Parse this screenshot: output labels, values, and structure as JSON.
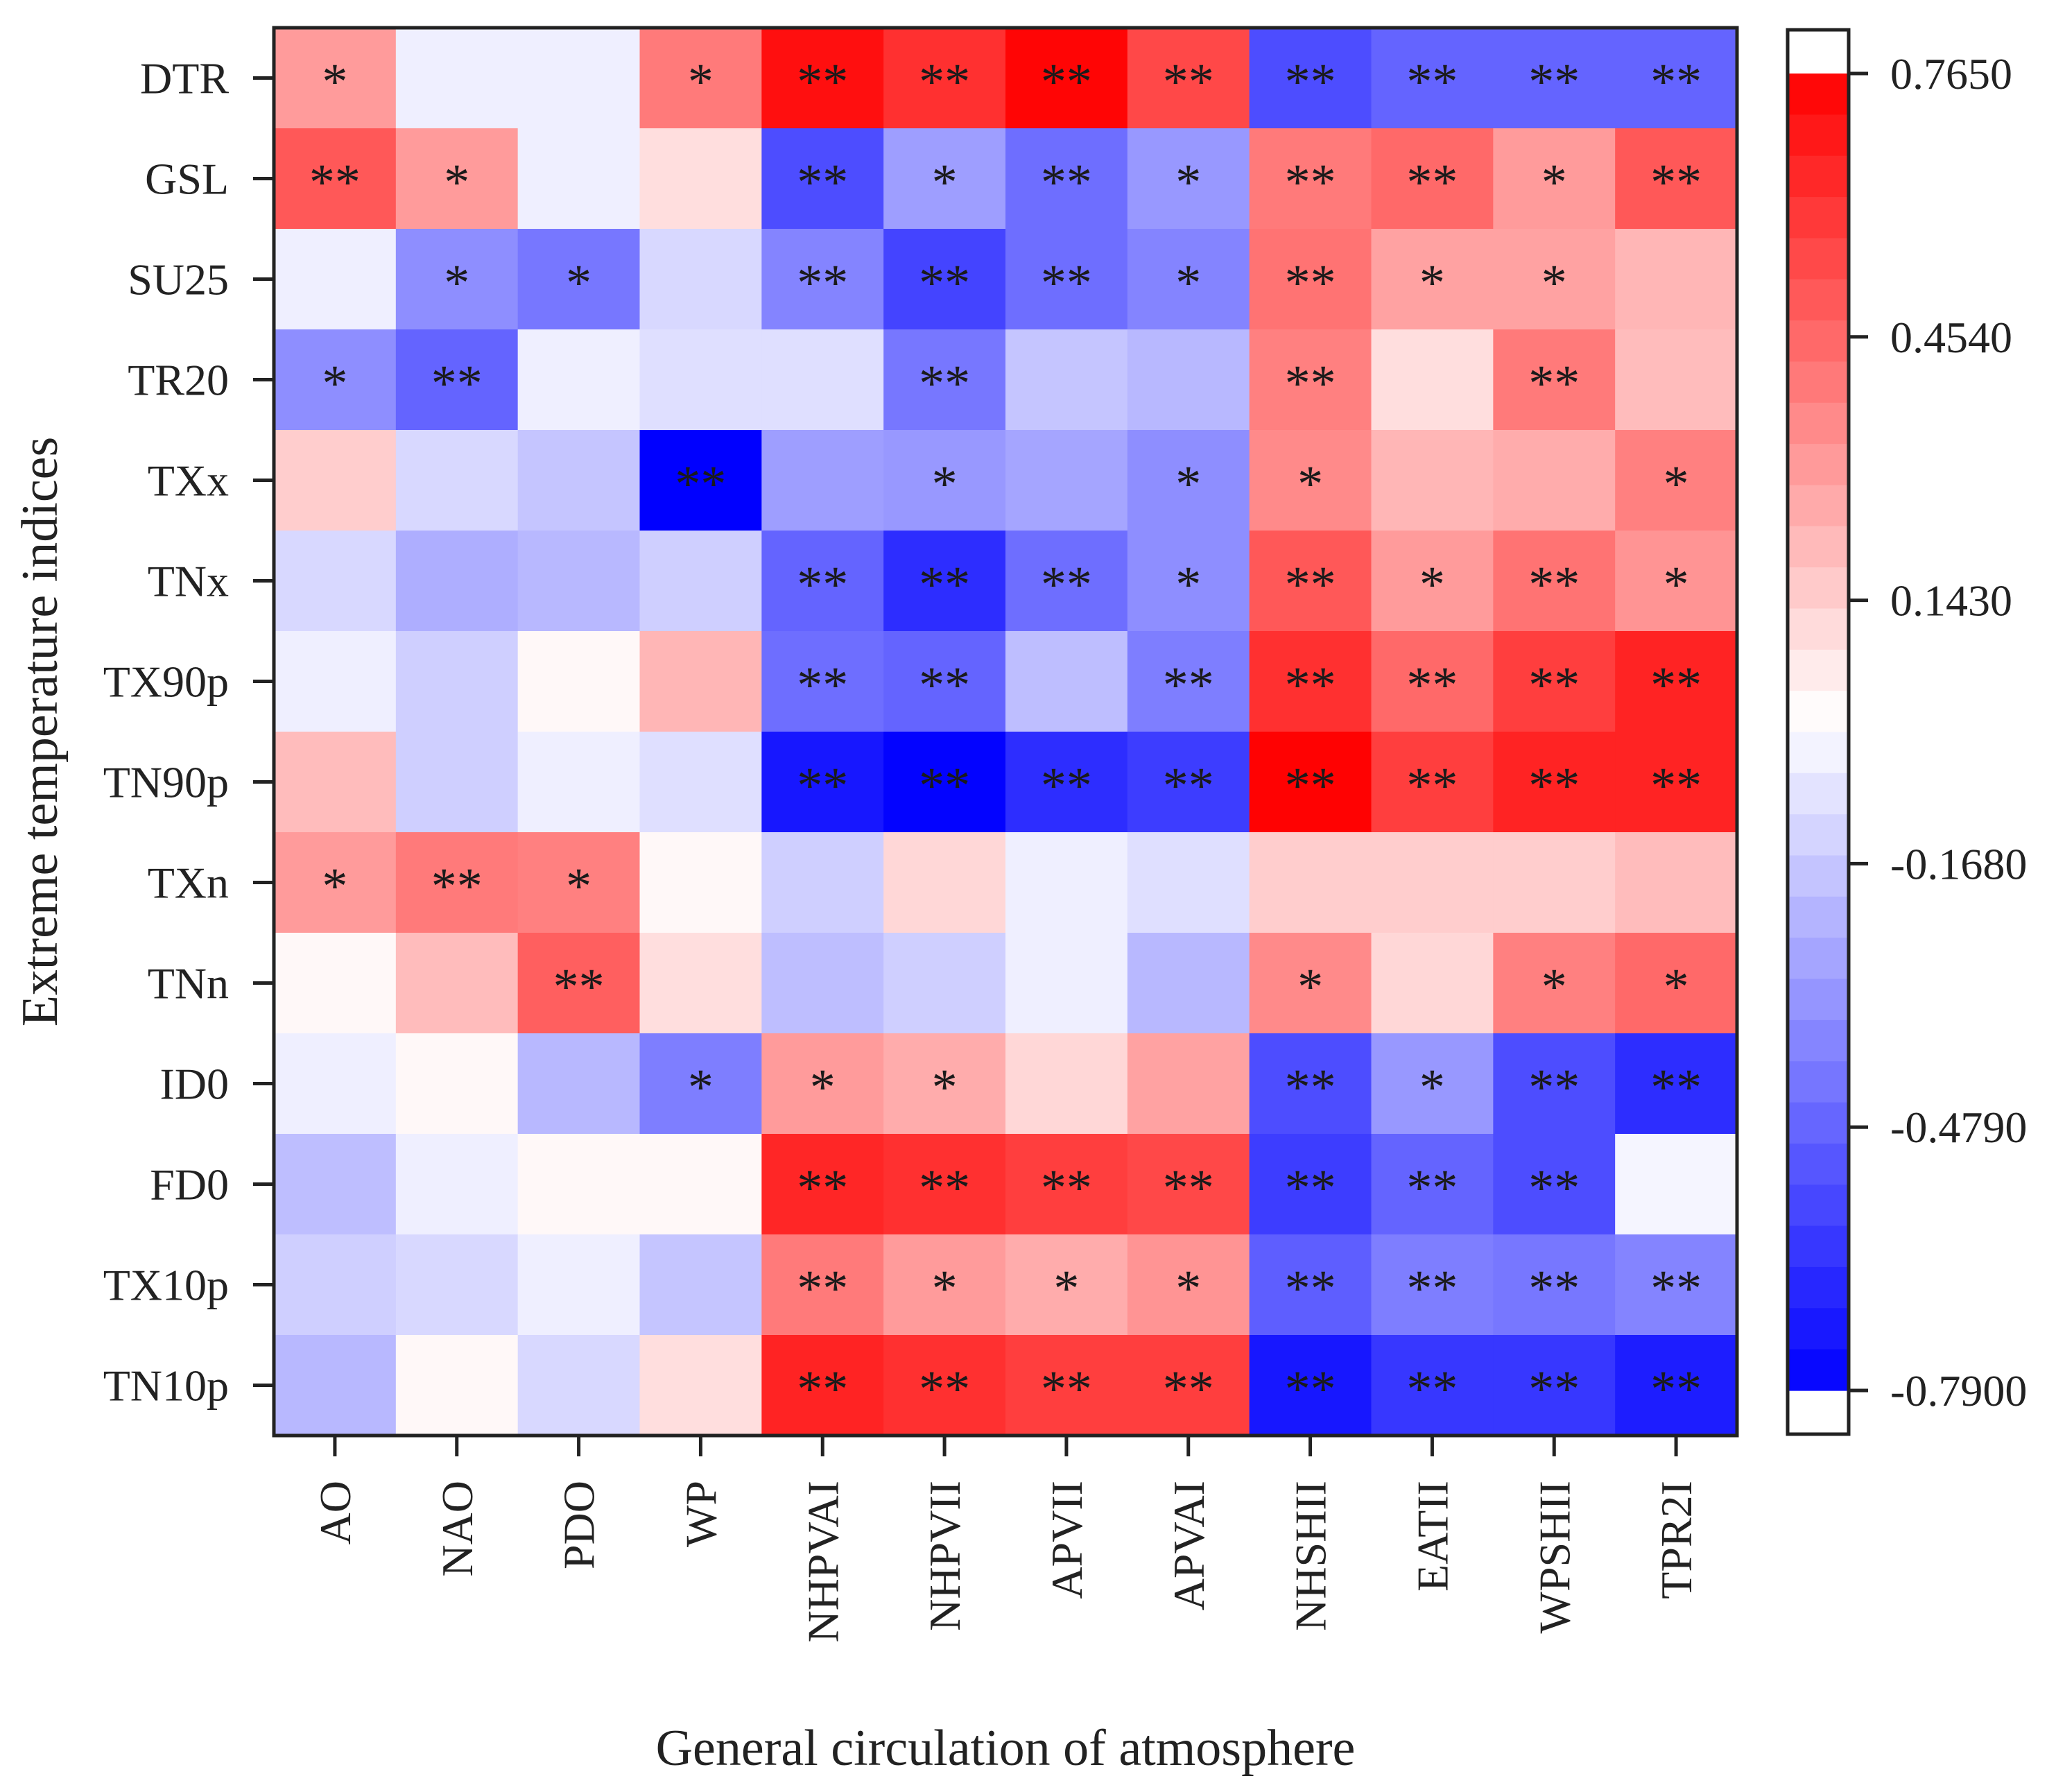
{
  "chart_data": {
    "type": "heatmap",
    "title": "",
    "xlabel": "General circulation of atmosphere",
    "ylabel": "Extreme temperature indices",
    "x_categories": [
      "AO",
      "NAO",
      "PDO",
      "WP",
      "NHPVAI",
      "NHPVII",
      "APVII",
      "APVAI",
      "NHSHII",
      "EATII",
      "WPSHII",
      "TPR2I"
    ],
    "y_categories": [
      "DTR",
      "GSL",
      "SU25",
      "TR20",
      "TXx",
      "TNx",
      "TX90p",
      "TN90p",
      "TXn",
      "TNn",
      "ID0",
      "FD0",
      "TX10p",
      "TN10p"
    ],
    "values": [
      [
        0.3,
        -0.05,
        -0.05,
        0.4,
        0.72,
        0.62,
        0.75,
        0.55,
        -0.55,
        -0.48,
        -0.48,
        -0.48
      ],
      [
        0.5,
        0.3,
        -0.05,
        0.1,
        -0.55,
        -0.3,
        -0.45,
        -0.32,
        0.4,
        0.45,
        0.3,
        0.5
      ],
      [
        -0.05,
        -0.35,
        -0.42,
        -0.12,
        -0.38,
        -0.58,
        -0.45,
        -0.38,
        0.42,
        0.28,
        0.28,
        0.22
      ],
      [
        -0.35,
        -0.48,
        -0.05,
        -0.1,
        -0.1,
        -0.42,
        -0.18,
        -0.22,
        0.38,
        0.1,
        0.4,
        0.2
      ],
      [
        0.15,
        -0.12,
        -0.18,
        -0.79,
        -0.3,
        -0.32,
        -0.28,
        -0.35,
        0.35,
        0.22,
        0.25,
        0.38
      ],
      [
        -0.12,
        -0.25,
        -0.22,
        -0.15,
        -0.48,
        -0.65,
        -0.45,
        -0.35,
        0.5,
        0.3,
        0.42,
        0.32
      ],
      [
        -0.05,
        -0.15,
        0.02,
        0.22,
        -0.45,
        -0.48,
        -0.2,
        -0.4,
        0.62,
        0.45,
        0.58,
        0.66
      ],
      [
        0.2,
        -0.15,
        -0.05,
        -0.1,
        -0.72,
        -0.78,
        -0.65,
        -0.6,
        0.76,
        0.58,
        0.66,
        0.66
      ],
      [
        0.3,
        0.4,
        0.38,
        0.02,
        -0.15,
        0.12,
        -0.05,
        -0.1,
        0.15,
        0.15,
        0.15,
        0.2
      ],
      [
        0.02,
        0.2,
        0.48,
        0.1,
        -0.2,
        -0.15,
        -0.05,
        -0.22,
        0.35,
        0.12,
        0.38,
        0.45
      ],
      [
        -0.05,
        0.02,
        -0.22,
        -0.4,
        0.3,
        0.25,
        0.12,
        0.28,
        -0.55,
        -0.32,
        -0.55,
        -0.65
      ],
      [
        -0.2,
        -0.05,
        0.02,
        0.02,
        0.65,
        0.62,
        0.58,
        0.55,
        -0.6,
        -0.48,
        -0.55,
        -0.03
      ],
      [
        -0.15,
        -0.12,
        -0.05,
        -0.18,
        0.4,
        0.3,
        0.25,
        0.32,
        -0.5,
        -0.4,
        -0.42,
        -0.38
      ],
      [
        -0.22,
        0.02,
        -0.12,
        0.1,
        0.66,
        0.62,
        0.58,
        0.58,
        -0.72,
        -0.62,
        -0.62,
        -0.7
      ]
    ],
    "significance": [
      [
        "*",
        "",
        "",
        "*",
        "**",
        "**",
        "**",
        "**",
        "**",
        "**",
        "**",
        "**"
      ],
      [
        "**",
        "*",
        "",
        "",
        "**",
        "*",
        "**",
        "*",
        "**",
        "**",
        "*",
        "**"
      ],
      [
        "",
        "*",
        "*",
        "",
        "**",
        "**",
        "**",
        "*",
        "**",
        "*",
        "*",
        ""
      ],
      [
        "*",
        "**",
        "",
        "",
        "",
        "**",
        "",
        "",
        "**",
        "",
        "**",
        ""
      ],
      [
        "",
        "",
        "",
        "**",
        "",
        "*",
        "",
        "*",
        "*",
        "",
        "",
        "*"
      ],
      [
        "",
        "",
        "",
        "",
        "**",
        "**",
        "**",
        "*",
        "**",
        "*",
        "**",
        "*"
      ],
      [
        "",
        "",
        "",
        "",
        "**",
        "**",
        "",
        "**",
        "**",
        "**",
        "**",
        "**"
      ],
      [
        "",
        "",
        "",
        "",
        "**",
        "**",
        "**",
        "**",
        "**",
        "**",
        "**",
        "**"
      ],
      [
        "*",
        "**",
        "*",
        "",
        "",
        "",
        "",
        "",
        "",
        "",
        "",
        ""
      ],
      [
        "",
        "",
        "**",
        "",
        "",
        "",
        "",
        "",
        "*",
        "",
        "*",
        "*"
      ],
      [
        "",
        "",
        "",
        "*",
        "*",
        "*",
        "",
        "",
        "**",
        "*",
        "**",
        "**"
      ],
      [
        "",
        "",
        "",
        "",
        "**",
        "**",
        "**",
        "**",
        "**",
        "**",
        "**",
        ""
      ],
      [
        "",
        "",
        "",
        "",
        "**",
        "*",
        "*",
        "*",
        "**",
        "**",
        "**",
        "**"
      ],
      [
        "",
        "",
        "",
        "",
        "**",
        "**",
        "**",
        "**",
        "**",
        "**",
        "**",
        "**"
      ]
    ],
    "color_range": [
      -0.79,
      0.765
    ],
    "colorbar_ticks": [
      "0.7650",
      "0.4540",
      "0.1430",
      "-0.1680",
      "-0.4790",
      "-0.7900"
    ],
    "colorbar_tick_values": [
      0.765,
      0.454,
      0.143,
      -0.168,
      -0.479,
      -0.79
    ],
    "colors": {
      "negative": "#0000ff",
      "neutral": "#ffffff",
      "positive": "#ff0000",
      "frame": "#222222"
    }
  }
}
